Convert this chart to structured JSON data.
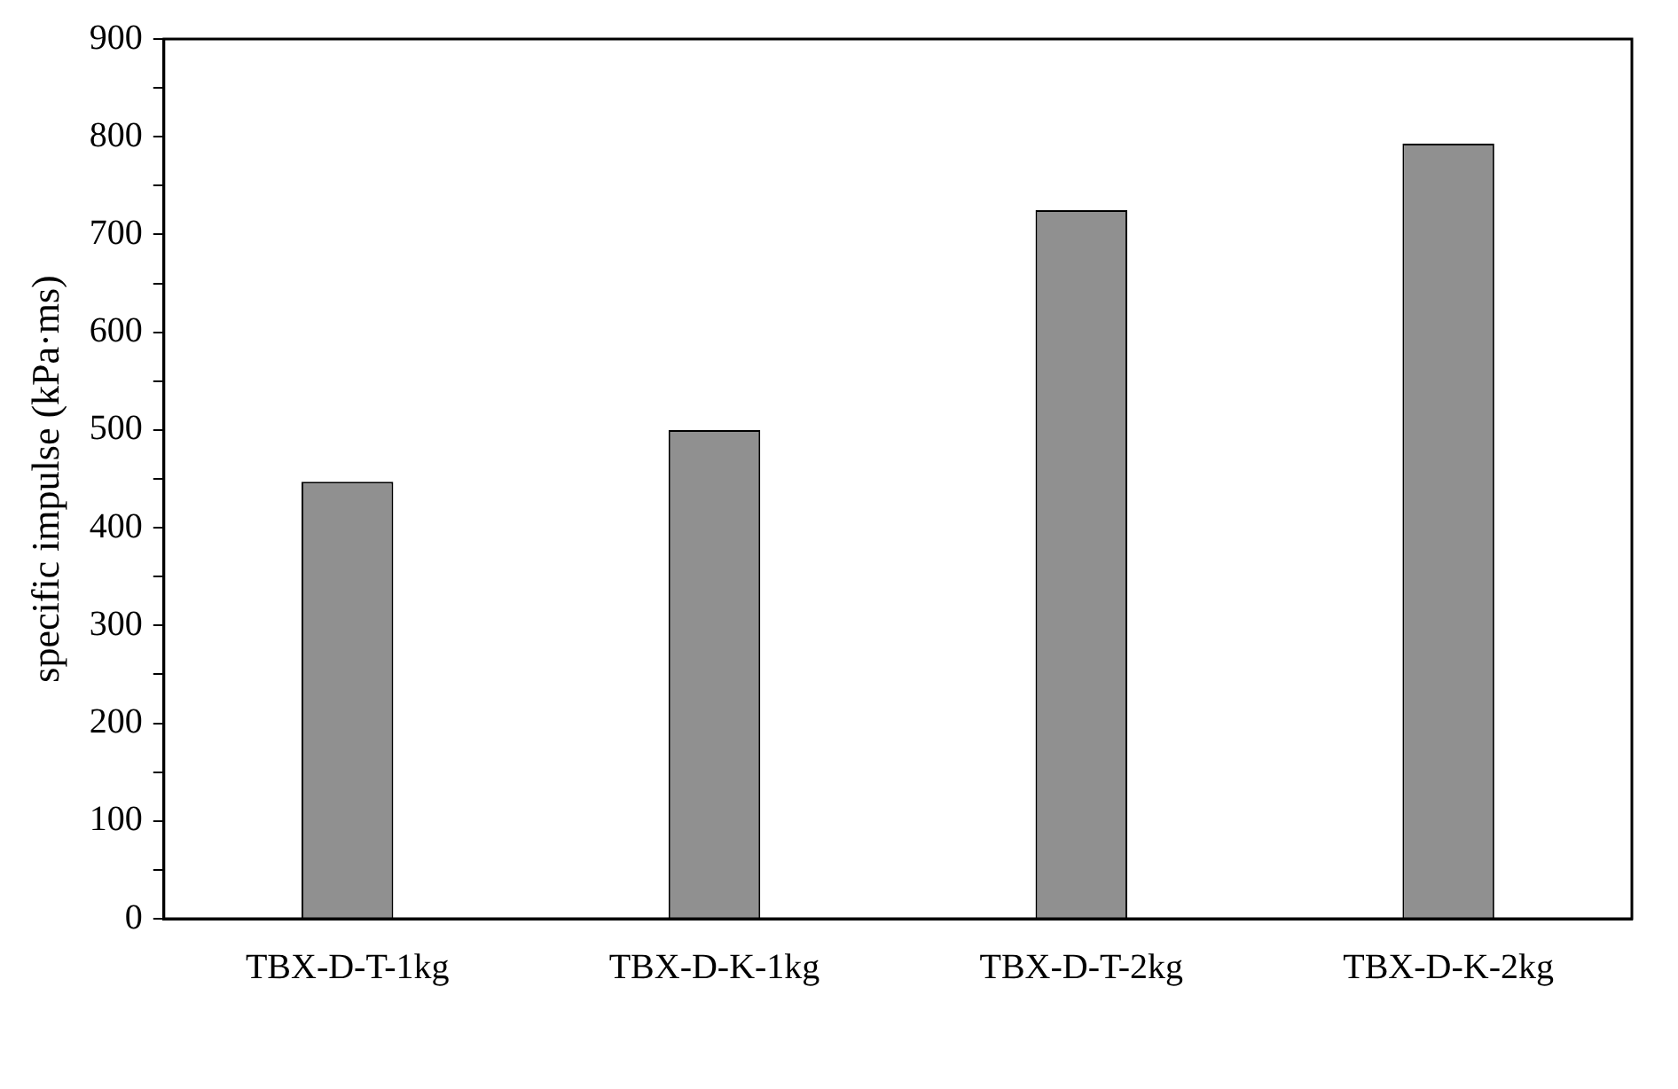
{
  "chart_data": {
    "type": "bar",
    "ylabel": "specific impulse (kPa·ms)",
    "categories": [
      "TBX-D-T-1kg",
      "TBX-D-K-1kg",
      "TBX-D-T-2kg",
      "TBX-D-K-2kg"
    ],
    "values": [
      447,
      500,
      725,
      793
    ],
    "color": "#909090",
    "ylim": [
      0,
      900
    ],
    "yticks": [
      0,
      {
        "value": 50,
        "label": null
      },
      100,
      {
        "value": 150,
        "label": null
      },
      200,
      {
        "value": 250,
        "label": null
      },
      300,
      {
        "value": 350,
        "label": null
      },
      400,
      {
        "value": 450,
        "label": null
      },
      500,
      {
        "value": 550,
        "label": null
      },
      600,
      {
        "value": 650,
        "label": null
      },
      700,
      {
        "value": 750,
        "label": null
      },
      800,
      {
        "value": 850,
        "label": null
      },
      900
    ],
    "grid": false,
    "legend": false
  }
}
